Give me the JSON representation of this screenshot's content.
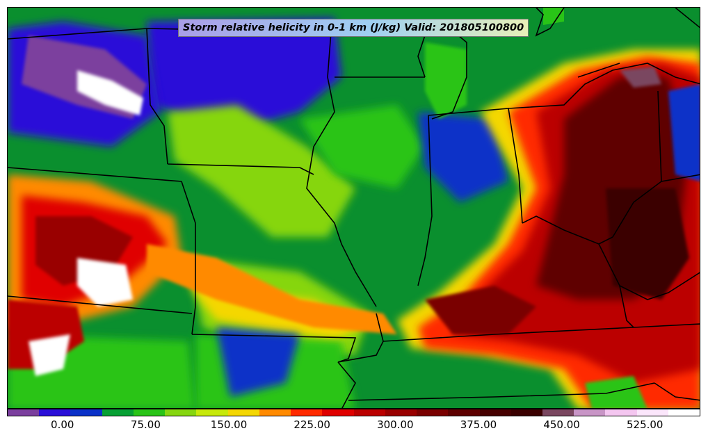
{
  "title": "Storm relative helicity in 0-1 km (J/kg) Valid: 201805100800",
  "colorbar": {
    "colors": [
      "#7b3f9e",
      "#2a0fd8",
      "#0b31c8",
      "#06a034",
      "#29c417",
      "#86d610",
      "#c7e90b",
      "#f4d703",
      "#ff8a00",
      "#ff2a00",
      "#e00000",
      "#bb0000",
      "#990000",
      "#7a0000",
      "#5e0000",
      "#460000",
      "#3a0000",
      "#7a4760",
      "#c895c6",
      "#f4c6f0",
      "#fbe6fb",
      "#ffffff"
    ],
    "ticks": [
      {
        "value": 0,
        "label": "0.00"
      },
      {
        "value": 75,
        "label": "75.00"
      },
      {
        "value": 150,
        "label": "150.00"
      },
      {
        "value": 225,
        "label": "225.00"
      },
      {
        "value": 300,
        "label": "300.00"
      },
      {
        "value": 375,
        "label": "375.00"
      },
      {
        "value": 450,
        "label": "450.00"
      },
      {
        "value": 525,
        "label": "525.00"
      }
    ],
    "vmin": -50,
    "vmax": 575
  }
}
